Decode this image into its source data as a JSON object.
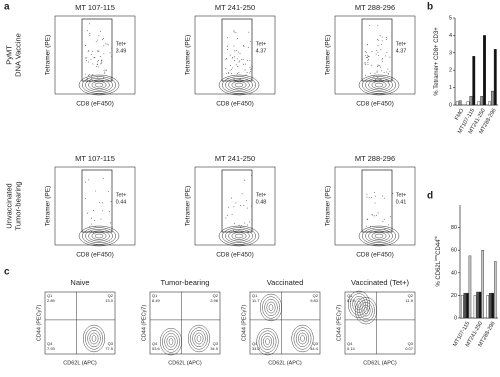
{
  "panel_labels": [
    "a",
    "b",
    "c",
    "d"
  ],
  "tetramer_panel": {
    "y_label": "Tetramer (PE)",
    "x_label": "CD8 (eF450)",
    "gate_label": "Tet+",
    "rows": [
      {
        "label": [
          "PyMT",
          "DNA Vaccine"
        ],
        "plots": [
          {
            "title": "MT 107-115",
            "value": "3.49"
          },
          {
            "title": "MT 241-250",
            "value": "4.37"
          },
          {
            "title": "MT 288-296",
            "value": "4.37"
          }
        ]
      },
      {
        "label": [
          "Unvaccinated",
          "Tumor-bearing"
        ],
        "plots": [
          {
            "title": "MT 107-115",
            "value": "0.44"
          },
          {
            "title": "MT 241-250",
            "value": "0.48"
          },
          {
            "title": "MT 288-296",
            "value": "0.41"
          }
        ]
      }
    ]
  },
  "phenotype_panel": {
    "y_label": "CD44 (PECy7)",
    "x_label": "CD62L (APC)",
    "plots": [
      {
        "title": "Naive",
        "quadrants": [
          [
            "Q1",
            "2.89"
          ],
          [
            "Q2",
            "13.0"
          ],
          [
            "Q4",
            "7.93"
          ],
          [
            "Q3",
            "77.5"
          ]
        ]
      },
      {
        "title": "Tumor-bearing",
        "quadrants": [
          [
            "Q1",
            "8.49"
          ],
          [
            "Q2",
            "2.96"
          ],
          [
            "Q4",
            "53.6"
          ],
          [
            "Q3",
            "34.9"
          ]
        ]
      },
      {
        "title": "Vaccinated",
        "quadrants": [
          [
            "Q1",
            "11.7"
          ],
          [
            "Q2",
            "9.83"
          ],
          [
            "Q4",
            "34.0"
          ],
          [
            "Q3",
            "44.4"
          ]
        ]
      },
      {
        "title": "Vaccinated (Tet+)",
        "quadrants": [
          [
            "Q1",
            "87.9"
          ],
          [
            "Q2",
            "11.9"
          ],
          [
            "Q4",
            "0.14"
          ],
          [
            "Q3",
            "0.07"
          ]
        ]
      }
    ]
  },
  "chart_data": [
    {
      "type": "bar",
      "y_label": [
        "% Tetramer+ CD8+ CD3+"
      ],
      "categories": [
        "FMO",
        "MT107-115",
        "MT241-250",
        "MT288-296"
      ],
      "series": [
        {
          "color": "#ffffff",
          "values": [
            0.2,
            0.2,
            0.2,
            0.2
          ]
        },
        {
          "color": "#9a9a9a",
          "values": [
            0.25,
            0.5,
            0.5,
            0.8
          ]
        },
        {
          "color": "#111111",
          "values": [
            null,
            2.8,
            4.0,
            3.2
          ]
        }
      ],
      "ylim": [
        0,
        5
      ],
      "yticks": [
        0,
        1,
        2,
        3,
        4,
        5
      ]
    },
    {
      "type": "bar",
      "y_label": [
        "% CD62L",
        "low",
        "CD44",
        "hi"
      ],
      "categories": [
        "MT107-115",
        "MT241-250",
        "MT288-296"
      ],
      "series": [
        {
          "color": "#ffffff",
          "values": [
            20,
            20,
            20
          ]
        },
        {
          "color": "#555555",
          "values": [
            22,
            23,
            22
          ]
        },
        {
          "color": "#111111",
          "values": [
            22,
            23,
            22
          ]
        },
        {
          "color": "#c8c8c8",
          "values": [
            55,
            60,
            50
          ]
        }
      ],
      "ylim": [
        0,
        100
      ],
      "yticks": [
        0,
        20,
        40,
        60,
        80
      ]
    }
  ]
}
